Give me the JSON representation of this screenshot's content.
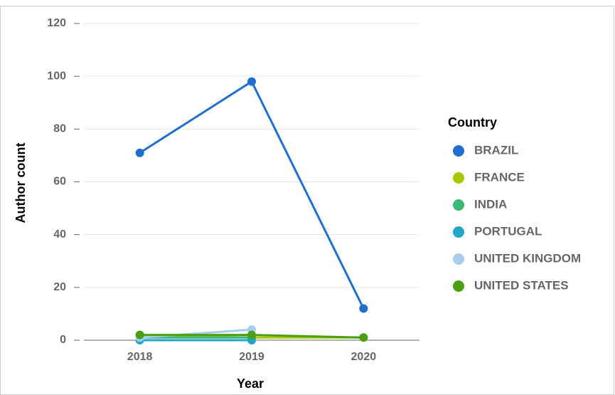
{
  "chart_data": {
    "type": "line",
    "x_label": "Year",
    "y_label": "Author count",
    "categories": [
      "2018",
      "2019",
      "2020"
    ],
    "series": [
      {
        "name": "BRAZIL",
        "color": "#1f6fd1",
        "values": [
          71,
          98,
          12
        ]
      },
      {
        "name": "FRANCE",
        "color": "#a8c800",
        "values": [
          2,
          1,
          1
        ]
      },
      {
        "name": "INDIA",
        "color": "#3cb878",
        "values": [
          1,
          1,
          null
        ]
      },
      {
        "name": "PORTUGAL",
        "color": "#22a6c8",
        "values": [
          0,
          0,
          null
        ]
      },
      {
        "name": "UNITED KINGDOM",
        "color": "#a6cdee",
        "values": [
          1,
          4,
          null
        ]
      },
      {
        "name": "UNITED STATES",
        "color": "#4aa012",
        "values": [
          2,
          2,
          1
        ]
      }
    ],
    "legend_title": "Country",
    "legend_position": "right",
    "ylim": [
      0,
      120
    ],
    "yticks": [
      0,
      20,
      40,
      60,
      80,
      100,
      120
    ],
    "grid": true
  }
}
